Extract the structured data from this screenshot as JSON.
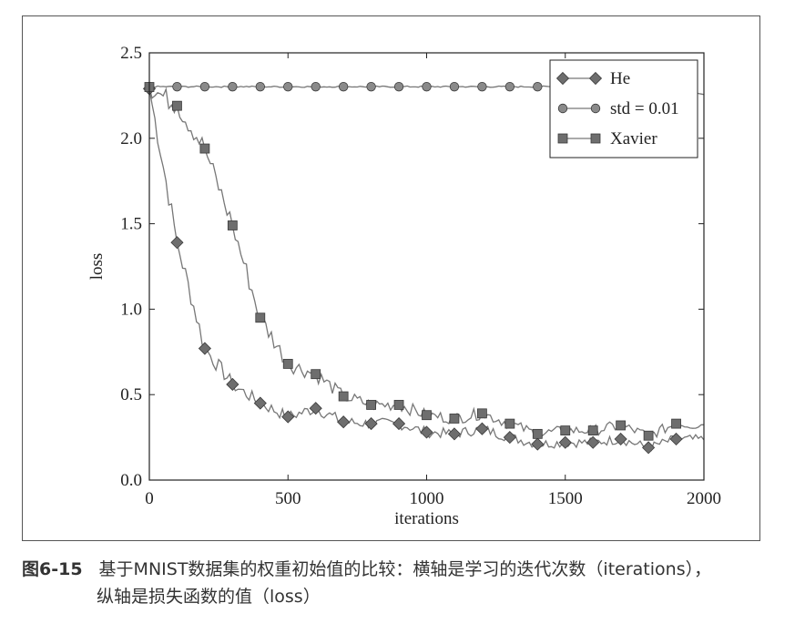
{
  "chart_data": {
    "type": "line",
    "title": "",
    "xlabel": "iterations",
    "ylabel": "loss",
    "xlim": [
      0,
      2000
    ],
    "ylim": [
      0.0,
      2.5
    ],
    "xticks": [
      0,
      500,
      1000,
      1500,
      2000
    ],
    "xtick_labels": [
      "0",
      "500",
      "1000",
      "1500",
      "2000"
    ],
    "yticks": [
      0.0,
      0.5,
      1.0,
      1.5,
      2.0,
      2.5
    ],
    "ytick_labels": [
      "0.0",
      "0.5",
      "1.0",
      "1.5",
      "2.0",
      "2.5"
    ],
    "grid": false,
    "legend_position": "top-right",
    "line_color": "#777777",
    "marker_color": "#6e6e6e",
    "series": [
      {
        "name": "He",
        "marker": "diamond",
        "x": [
          0,
          100,
          200,
          300,
          400,
          500,
          600,
          700,
          800,
          900,
          1000,
          1100,
          1200,
          1300,
          1400,
          1500,
          1600,
          1700,
          1800,
          1900
        ],
        "y": [
          2.29,
          1.39,
          0.77,
          0.56,
          0.45,
          0.37,
          0.42,
          0.34,
          0.33,
          0.33,
          0.28,
          0.27,
          0.3,
          0.25,
          0.21,
          0.22,
          0.22,
          0.24,
          0.19,
          0.24
        ]
      },
      {
        "name": "std = 0.01",
        "marker": "circle",
        "x": [
          0,
          100,
          200,
          300,
          400,
          500,
          600,
          700,
          800,
          900,
          1000,
          1100,
          1200,
          1300,
          1400,
          1500,
          1600,
          1700,
          1800,
          1900
        ],
        "y": [
          2.302,
          2.302,
          2.302,
          2.302,
          2.302,
          2.302,
          2.302,
          2.302,
          2.302,
          2.302,
          2.302,
          2.302,
          2.302,
          2.302,
          2.302,
          2.302,
          2.302,
          2.302,
          2.302,
          2.302
        ]
      },
      {
        "name": "Xavier",
        "marker": "square",
        "x": [
          0,
          100,
          200,
          300,
          400,
          500,
          600,
          700,
          800,
          900,
          1000,
          1100,
          1200,
          1300,
          1400,
          1500,
          1600,
          1700,
          1800,
          1900
        ],
        "y": [
          2.3,
          2.19,
          1.94,
          1.49,
          0.95,
          0.68,
          0.62,
          0.49,
          0.44,
          0.44,
          0.38,
          0.36,
          0.39,
          0.33,
          0.27,
          0.29,
          0.29,
          0.32,
          0.26,
          0.33
        ]
      }
    ]
  },
  "caption": {
    "figure_number": "图6-15",
    "line1": "基于MNIST数据集的权重初始值的比较：横轴是学习的迭代次数（iterations），",
    "line2": "纵轴是损失函数的值（loss）"
  }
}
